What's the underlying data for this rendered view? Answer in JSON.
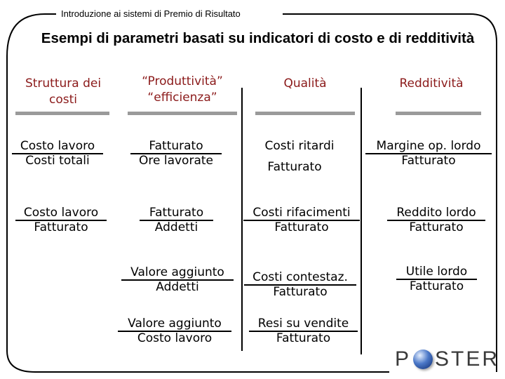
{
  "header_label": "Introduzione ai sistemi di Premio di Risultato",
  "title": "Esempi di parametri basati su indicatori di costo e di redditività",
  "columns": [
    {
      "heading": [
        "Struttura dei",
        "costi"
      ],
      "items": [
        {
          "num": "Costo lavoro",
          "den": "Costi totali"
        },
        {
          "num": "Costo lavoro",
          "den": "Fatturato"
        }
      ]
    },
    {
      "heading": [
        "“Produttività”",
        "“efficienza”"
      ],
      "items": [
        {
          "num": "Fatturato",
          "den": "Ore lavorate"
        },
        {
          "num": "Fatturato",
          "den": "Addetti"
        },
        {
          "num": "Valore aggiunto",
          "den": "Addetti"
        },
        {
          "num": "Valore aggiunto",
          "den": "Costo lavoro"
        }
      ]
    },
    {
      "heading": [
        "Qualità"
      ],
      "items": [
        {
          "num": "Costi ritardi",
          "den": "Fatturato"
        },
        {
          "num": "Costi rifacimenti",
          "den": "Fatturato"
        },
        {
          "num": "Costi contestaz.",
          "den": "Fatturato"
        },
        {
          "num": "Resi su vendite",
          "den": "Fatturato"
        }
      ]
    },
    {
      "heading": [
        "Redditività"
      ],
      "items": [
        {
          "num": "Margine op. lordo",
          "den": "Fatturato"
        },
        {
          "num": "Reddito lordo",
          "den": "Fatturato"
        },
        {
          "num": "Utile lordo",
          "den": "Fatturato"
        }
      ]
    }
  ],
  "logo": {
    "text_before": "P",
    "text_after": "STER"
  },
  "colors": {
    "heading": "#8b1a1a",
    "rule": "#9a9a9a"
  }
}
